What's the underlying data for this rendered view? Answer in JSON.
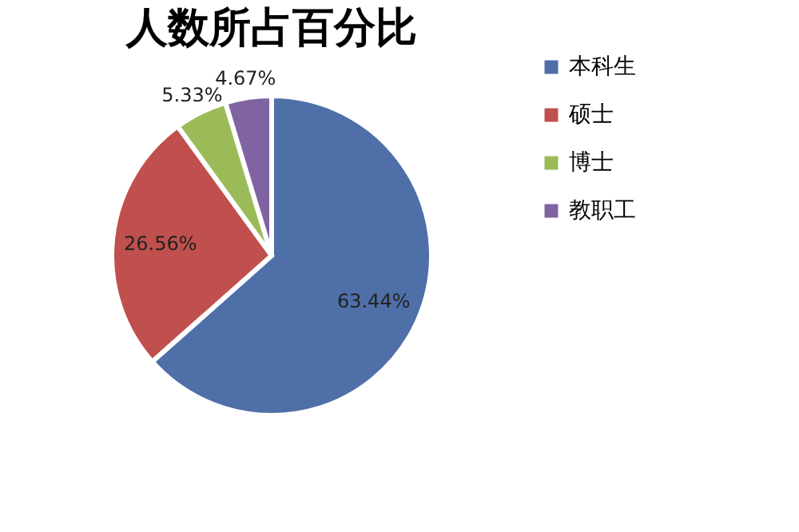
{
  "chart_data": {
    "type": "pie",
    "title": "人数所占百分比",
    "categories": [
      "本科生",
      "硕士",
      "博士",
      "教职工"
    ],
    "values": [
      63.44,
      26.56,
      5.33,
      4.67
    ],
    "colors": [
      "#4f6fa8",
      "#c0504d",
      "#9bbb59",
      "#8064a2"
    ],
    "value_labels": [
      "63.44%",
      "26.56%",
      "5.33%",
      "4.67%"
    ],
    "legend": "right"
  }
}
